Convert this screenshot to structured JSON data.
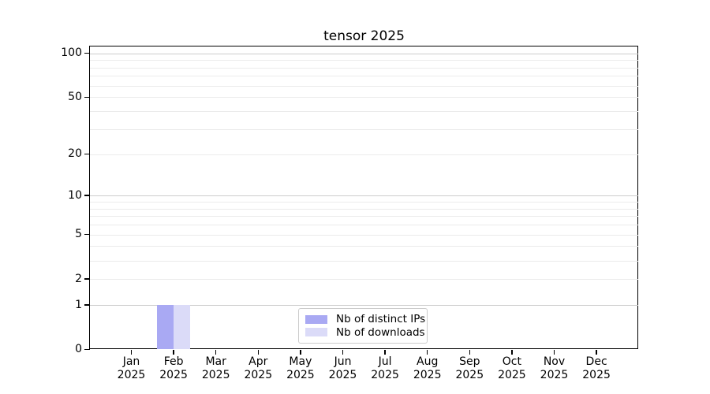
{
  "chart_data": {
    "type": "bar",
    "title": "tensor 2025",
    "xlabel": "",
    "ylabel": "",
    "yscale": "log1p",
    "ylim": [
      0,
      112
    ],
    "grid": {
      "orientation": "horizontal",
      "minor": [
        2,
        3,
        4,
        5,
        6,
        7,
        8,
        9,
        20,
        30,
        40,
        50,
        60,
        70,
        80,
        90
      ],
      "major": [
        1,
        10,
        100
      ],
      "minor_color": "#ebebeb",
      "major_color": "#cccccc"
    },
    "y_ticks": [
      {
        "value": 100,
        "label": "100"
      },
      {
        "value": 50,
        "label": "50"
      },
      {
        "value": 20,
        "label": "20"
      },
      {
        "value": 10,
        "label": "10"
      },
      {
        "value": 5,
        "label": "5"
      },
      {
        "value": 2,
        "label": "2"
      },
      {
        "value": 1,
        "label": "1"
      },
      {
        "value": 0,
        "label": "0"
      }
    ],
    "x_ticks": [
      {
        "label": "Jan",
        "sublabel": "2025"
      },
      {
        "label": "Feb",
        "sublabel": "2025"
      },
      {
        "label": "Mar",
        "sublabel": "2025"
      },
      {
        "label": "Apr",
        "sublabel": "2025"
      },
      {
        "label": "May",
        "sublabel": "2025"
      },
      {
        "label": "Jun",
        "sublabel": "2025"
      },
      {
        "label": "Jul",
        "sublabel": "2025"
      },
      {
        "label": "Aug",
        "sublabel": "2025"
      },
      {
        "label": "Sep",
        "sublabel": "2025"
      },
      {
        "label": "Oct",
        "sublabel": "2025"
      },
      {
        "label": "Nov",
        "sublabel": "2025"
      },
      {
        "label": "Dec",
        "sublabel": "2025"
      }
    ],
    "series": [
      {
        "name": "Nb of distinct IPs",
        "color": "#a9a9f3",
        "values": [
          null,
          1,
          null,
          null,
          null,
          null,
          null,
          null,
          null,
          null,
          null,
          null
        ]
      },
      {
        "name": "Nb of downloads",
        "color": "#dbdbf8",
        "values": [
          null,
          1,
          null,
          null,
          null,
          null,
          null,
          null,
          null,
          null,
          null,
          null
        ]
      }
    ],
    "legend_position": "lower center",
    "colors": {
      "axis": "#000000",
      "background": "#ffffff"
    }
  }
}
